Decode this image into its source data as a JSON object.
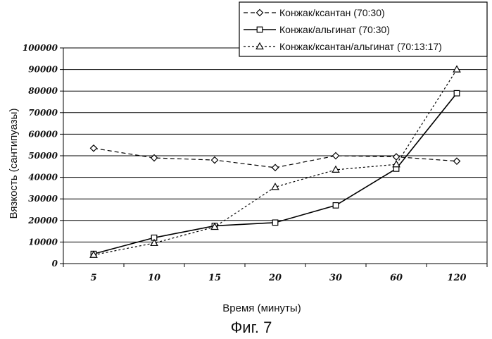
{
  "chart_data": {
    "type": "line",
    "categories": [
      "5",
      "10",
      "15",
      "20",
      "30",
      "60",
      "120"
    ],
    "series": [
      {
        "name": "Конжак/ксантан (70:30)",
        "marker": "diamond",
        "dash": "6,4",
        "values": [
          53500,
          49000,
          48000,
          44500,
          50000,
          49500,
          47500
        ]
      },
      {
        "name": "Конжак/альгинат (70:30)",
        "marker": "square",
        "dash": "",
        "values": [
          4500,
          12000,
          17500,
          19000,
          27000,
          44000,
          79000
        ]
      },
      {
        "name": "Конжак/ксантан/альгинат (70:13:17)",
        "marker": "triangle",
        "dash": "3,3",
        "values": [
          4000,
          9500,
          17000,
          35500,
          43500,
          46000,
          90000
        ]
      }
    ],
    "xlabel": "Время (минуты)",
    "ylabel": "Вязкость (сантипуазы)",
    "ylim": [
      0,
      100000
    ],
    "yticks": [
      0,
      10000,
      20000,
      30000,
      40000,
      50000,
      60000,
      70000,
      80000,
      90000,
      100000
    ],
    "grid": true,
    "legend_position": "top-right"
  },
  "caption": "Фиг. 7"
}
